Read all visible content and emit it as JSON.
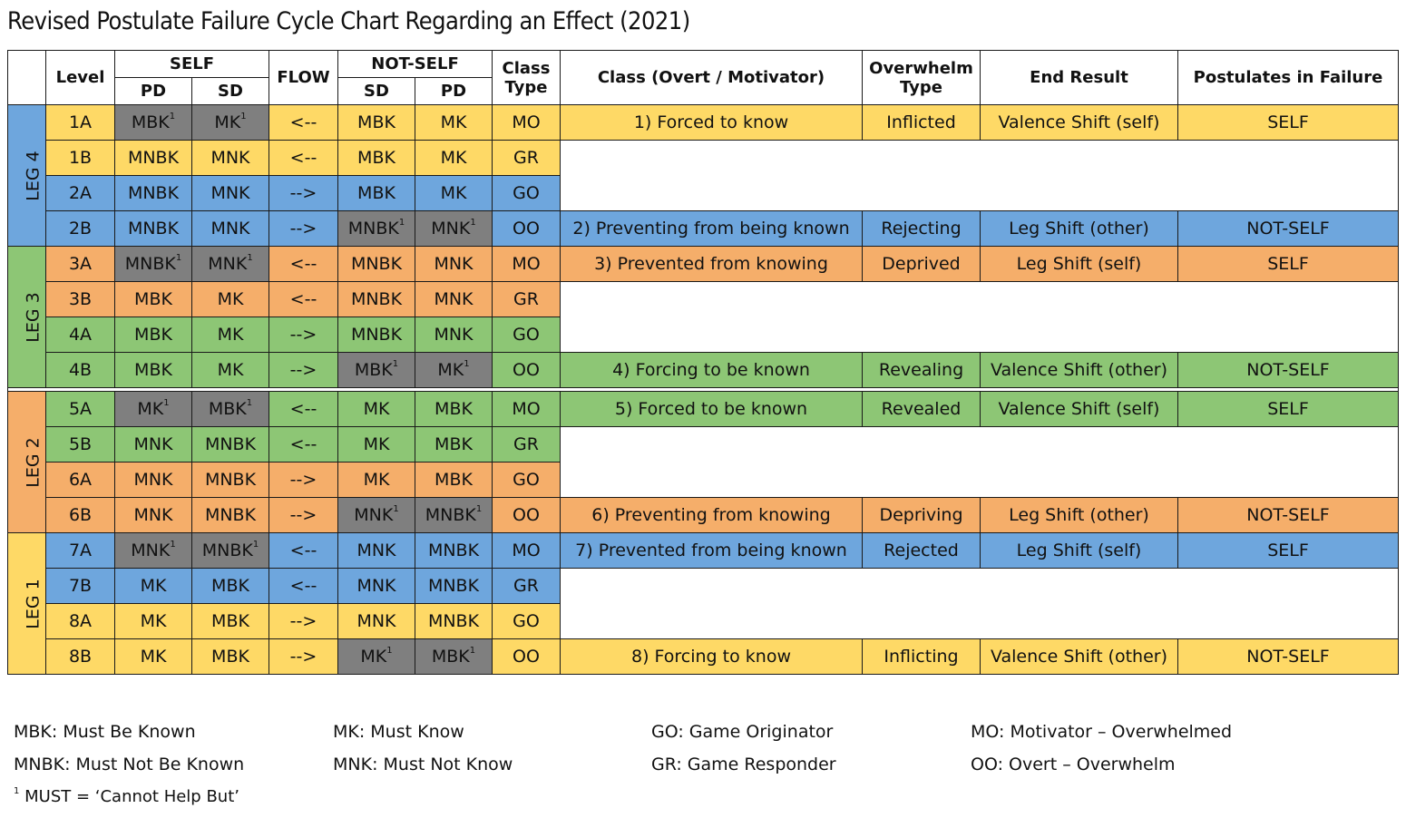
{
  "title": "Revised Postulate Failure Cycle Chart Regarding an Effect (2021)",
  "headers": {
    "level": "Level",
    "self": "SELF",
    "flow": "FLOW",
    "not_self": "NOT-SELF",
    "class_type": "Class Type",
    "class_overt": "Class (Overt / Motivator)",
    "overwhelm_type": "Overwhelm Type",
    "end_result": "End Result",
    "postulates": "Postulates in Failure",
    "pd": "PD",
    "sd": "SD"
  },
  "legs": [
    "LEG 4",
    "LEG 3",
    "LEG 2",
    "LEG 1"
  ],
  "colors": {
    "yellow": "#fed966",
    "blue": "#6ea6dd",
    "orange": "#f5ae6a",
    "green": "#8dc675",
    "gray": "#7f7f7f"
  },
  "rows": [
    {
      "level": "1A",
      "self_pd": "MBK",
      "self_sd": "MK",
      "flow": "<--",
      "ns_sd": "MBK",
      "ns_pd": "MK",
      "class_type": "MO",
      "class_text": "1) Forced to know",
      "overwhelm": "Inflicted",
      "end_result": "Valence Shift (self)",
      "postulates": "SELF"
    },
    {
      "level": "1B",
      "self_pd": "MNBK",
      "self_sd": "MNK",
      "flow": "<--",
      "ns_sd": "MBK",
      "ns_pd": "MK",
      "class_type": "GR"
    },
    {
      "level": "2A",
      "self_pd": "MNBK",
      "self_sd": "MNK",
      "flow": "-->",
      "ns_sd": "MBK",
      "ns_pd": "MK",
      "class_type": "GO"
    },
    {
      "level": "2B",
      "self_pd": "MNBK",
      "self_sd": "MNK",
      "flow": "-->",
      "ns_sd": "MNBK",
      "ns_pd": "MNK",
      "class_type": "OO",
      "class_text": "2) Preventing from being known",
      "overwhelm": "Rejecting",
      "end_result": "Leg Shift (other)",
      "postulates": "NOT-SELF"
    },
    {
      "level": "3A",
      "self_pd": "MNBK",
      "self_sd": "MNK",
      "flow": "<--",
      "ns_sd": "MNBK",
      "ns_pd": "MNK",
      "class_type": "MO",
      "class_text": "3) Prevented from knowing",
      "overwhelm": "Deprived",
      "end_result": "Leg Shift (self)",
      "postulates": "SELF"
    },
    {
      "level": "3B",
      "self_pd": "MBK",
      "self_sd": "MK",
      "flow": "<--",
      "ns_sd": "MNBK",
      "ns_pd": "MNK",
      "class_type": "GR"
    },
    {
      "level": "4A",
      "self_pd": "MBK",
      "self_sd": "MK",
      "flow": "-->",
      "ns_sd": "MNBK",
      "ns_pd": "MNK",
      "class_type": "GO"
    },
    {
      "level": "4B",
      "self_pd": "MBK",
      "self_sd": "MK",
      "flow": "-->",
      "ns_sd": "MBK",
      "ns_pd": "MK",
      "class_type": "OO",
      "class_text": "4) Forcing to be known",
      "overwhelm": "Revealing",
      "end_result": "Valence Shift (other)",
      "postulates": "NOT-SELF"
    },
    {
      "level": "5A",
      "self_pd": "MK",
      "self_sd": "MBK",
      "flow": "<--",
      "ns_sd": "MK",
      "ns_pd": "MBK",
      "class_type": "MO",
      "class_text": "5) Forced to be known",
      "overwhelm": "Revealed",
      "end_result": "Valence Shift (self)",
      "postulates": "SELF"
    },
    {
      "level": "5B",
      "self_pd": "MNK",
      "self_sd": "MNBK",
      "flow": "<--",
      "ns_sd": "MK",
      "ns_pd": "MBK",
      "class_type": "GR"
    },
    {
      "level": "6A",
      "self_pd": "MNK",
      "self_sd": "MNBK",
      "flow": "-->",
      "ns_sd": "MK",
      "ns_pd": "MBK",
      "class_type": "GO"
    },
    {
      "level": "6B",
      "self_pd": "MNK",
      "self_sd": "MNBK",
      "flow": "-->",
      "ns_sd": "MNK",
      "ns_pd": "MNBK",
      "class_type": "OO",
      "class_text": "6) Preventing from knowing",
      "overwhelm": "Depriving",
      "end_result": "Leg Shift (other)",
      "postulates": "NOT-SELF"
    },
    {
      "level": "7A",
      "self_pd": "MNK",
      "self_sd": "MNBK",
      "flow": "<--",
      "ns_sd": "MNK",
      "ns_pd": "MNBK",
      "class_type": "MO",
      "class_text": "7) Prevented from being known",
      "overwhelm": "Rejected",
      "end_result": "Leg Shift (self)",
      "postulates": "SELF"
    },
    {
      "level": "7B",
      "self_pd": "MK",
      "self_sd": "MBK",
      "flow": "<--",
      "ns_sd": "MNK",
      "ns_pd": "MNBK",
      "class_type": "GR"
    },
    {
      "level": "8A",
      "self_pd": "MK",
      "self_sd": "MBK",
      "flow": "-->",
      "ns_sd": "MNK",
      "ns_pd": "MNBK",
      "class_type": "GO"
    },
    {
      "level": "8B",
      "self_pd": "MK",
      "self_sd": "MBK",
      "flow": "-->",
      "ns_sd": "MK",
      "ns_pd": "MBK",
      "class_type": "OO",
      "class_text": "8) Forcing to know",
      "overwhelm": "Inflicting",
      "end_result": "Valence Shift (other)",
      "postulates": "NOT-SELF"
    }
  ],
  "footnote_mark": "1",
  "legend": {
    "mbk": "MBK: Must Be Known",
    "mnbk": "MNBK: Must Not Be Known",
    "mk": "MK: Must Know",
    "mnk": "MNK: Must Not Know",
    "go": "GO: Game Originator",
    "gr": "GR: Game Responder",
    "mo": "MO: Motivator – Overwhelmed",
    "oo": "OO: Overt – Overwhelm",
    "footnote": "MUST = ‘Cannot Help But’"
  }
}
